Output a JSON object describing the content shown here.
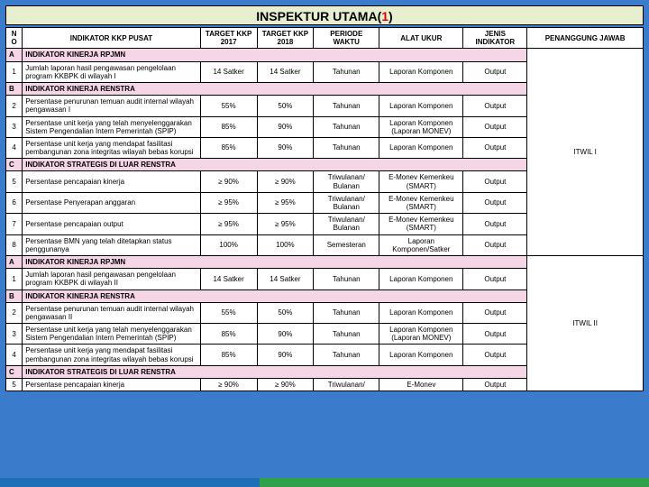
{
  "title_prefix": "INSPEKTUR UTAMA(",
  "title_num": "1",
  "title_suffix": ")",
  "headers": {
    "no": "NO",
    "ind": "INDIKATOR KKP PUSAT",
    "t2017": "TARGET KKP 2017",
    "t2018": "TARGET KKP 2018",
    "periode": "PERIODE WAKTU",
    "alat": "ALAT UKUR",
    "jenis": "JENIS INDIKATOR",
    "pj": "PENANGGUNG JAWAB"
  },
  "sections1": {
    "A": "INDIKATOR KINERJA RPJMN",
    "B": "INDIKATOR KINERJA RENSTRA",
    "C": "INDIKATOR STRATEGIS DI LUAR RENSTRA"
  },
  "pj1": "ITWIL I",
  "rows1": [
    {
      "no": "1",
      "ind": "Jumlah laporan hasil pengawasan pengelolaan program KKBPK di wilayah I",
      "t17": "14 Satker",
      "t18": "14 Satker",
      "per": "Tahunan",
      "alat": "Laporan Komponen",
      "jen": "Output"
    },
    {
      "no": "2",
      "ind": "Persentase penurunan temuan audit internal wilayah pengawasan I",
      "t17": "55%",
      "t18": "50%",
      "per": "Tahunan",
      "alat": "Laporan Komponen",
      "jen": "Output"
    },
    {
      "no": "3",
      "ind": "Persentase unit kerja yang telah menyelenggarakan Sistem Pengendalian Intern Pemerintah (SPIP)",
      "t17": "85%",
      "t18": "90%",
      "per": "Tahunan",
      "alat": "Laporan Komponen (Laporan MONEV)",
      "jen": "Output"
    },
    {
      "no": "4",
      "ind": "Persentase unit kerja yang mendapat fasilitasi pembangunan zona integritas wilayah bebas korupsi",
      "t17": "85%",
      "t18": "90%",
      "per": "Tahunan",
      "alat": "Laporan Komponen",
      "jen": "Output"
    },
    {
      "no": "5",
      "ind": "Persentase pencapaian kinerja",
      "t17": "≥ 90%",
      "t18": "≥ 90%",
      "per": "Triwulanan/ Bulanan",
      "alat": "E-Monev Kemenkeu (SMART)",
      "jen": "Output"
    },
    {
      "no": "6",
      "ind": "Persentase Penyerapan anggaran",
      "t17": "≥ 95%",
      "t18": "≥ 95%",
      "per": "Triwulanan/ Bulanan",
      "alat": "E-Monev Kemenkeu (SMART)",
      "jen": "Output"
    },
    {
      "no": "7",
      "ind": "Persentase pencapaian output",
      "t17": "≥ 95%",
      "t18": "≥ 95%",
      "per": "Triwulanan/ Bulanan",
      "alat": "E-Monev Kemenkeu (SMART)",
      "jen": "Output"
    },
    {
      "no": "8",
      "ind": "Persentase BMN yang telah ditetapkan status penggunanya",
      "t17": "100%",
      "t18": "100%",
      "per": "Semesteran",
      "alat": "Laporan Komponen/Satker",
      "jen": "Output"
    }
  ],
  "sections2": {
    "A": "INDIKATOR KINERJA RPJMN",
    "B": "INDIKATOR KINERJA RENSTRA",
    "C": "INDIKATOR STRATEGIS DI LUAR RENSTRA"
  },
  "pj2": "ITWIL II",
  "rows2": [
    {
      "no": "1",
      "ind": "Jumlah laporan hasil pengawasan pengelolaan program KKBPK di wilayah II",
      "t17": "14 Satker",
      "t18": "14 Satker",
      "per": "Tahunan",
      "alat": "Laporan Komponen",
      "jen": "Output"
    },
    {
      "no": "2",
      "ind": "Persentase penurunan temuan audit internal wilayah pengawasan II",
      "t17": "55%",
      "t18": "50%",
      "per": "Tahunan",
      "alat": "Laporan Komponen",
      "jen": "Output"
    },
    {
      "no": "3",
      "ind": "Persentase unit kerja yang telah menyelenggarakan Sistem Pengendalian Intern Pemerintah (SPIP)",
      "t17": "85%",
      "t18": "90%",
      "per": "Tahunan",
      "alat": "Laporan Komponen (Laporan MONEV)",
      "jen": "Output"
    },
    {
      "no": "4",
      "ind": "Persentase unit kerja yang mendapat fasilitasi pembangunan zona integritas wilayah bebas korupsi",
      "t17": "85%",
      "t18": "90%",
      "per": "Tahunan",
      "alat": "Laporan Komponen",
      "jen": "Output"
    },
    {
      "no": "5",
      "ind": "Persentase pencapaian kinerja",
      "t17": "≥ 90%",
      "t18": "≥ 90%",
      "per": "Triwulanan/",
      "alat": "E-Monev",
      "jen": "Output"
    }
  ]
}
